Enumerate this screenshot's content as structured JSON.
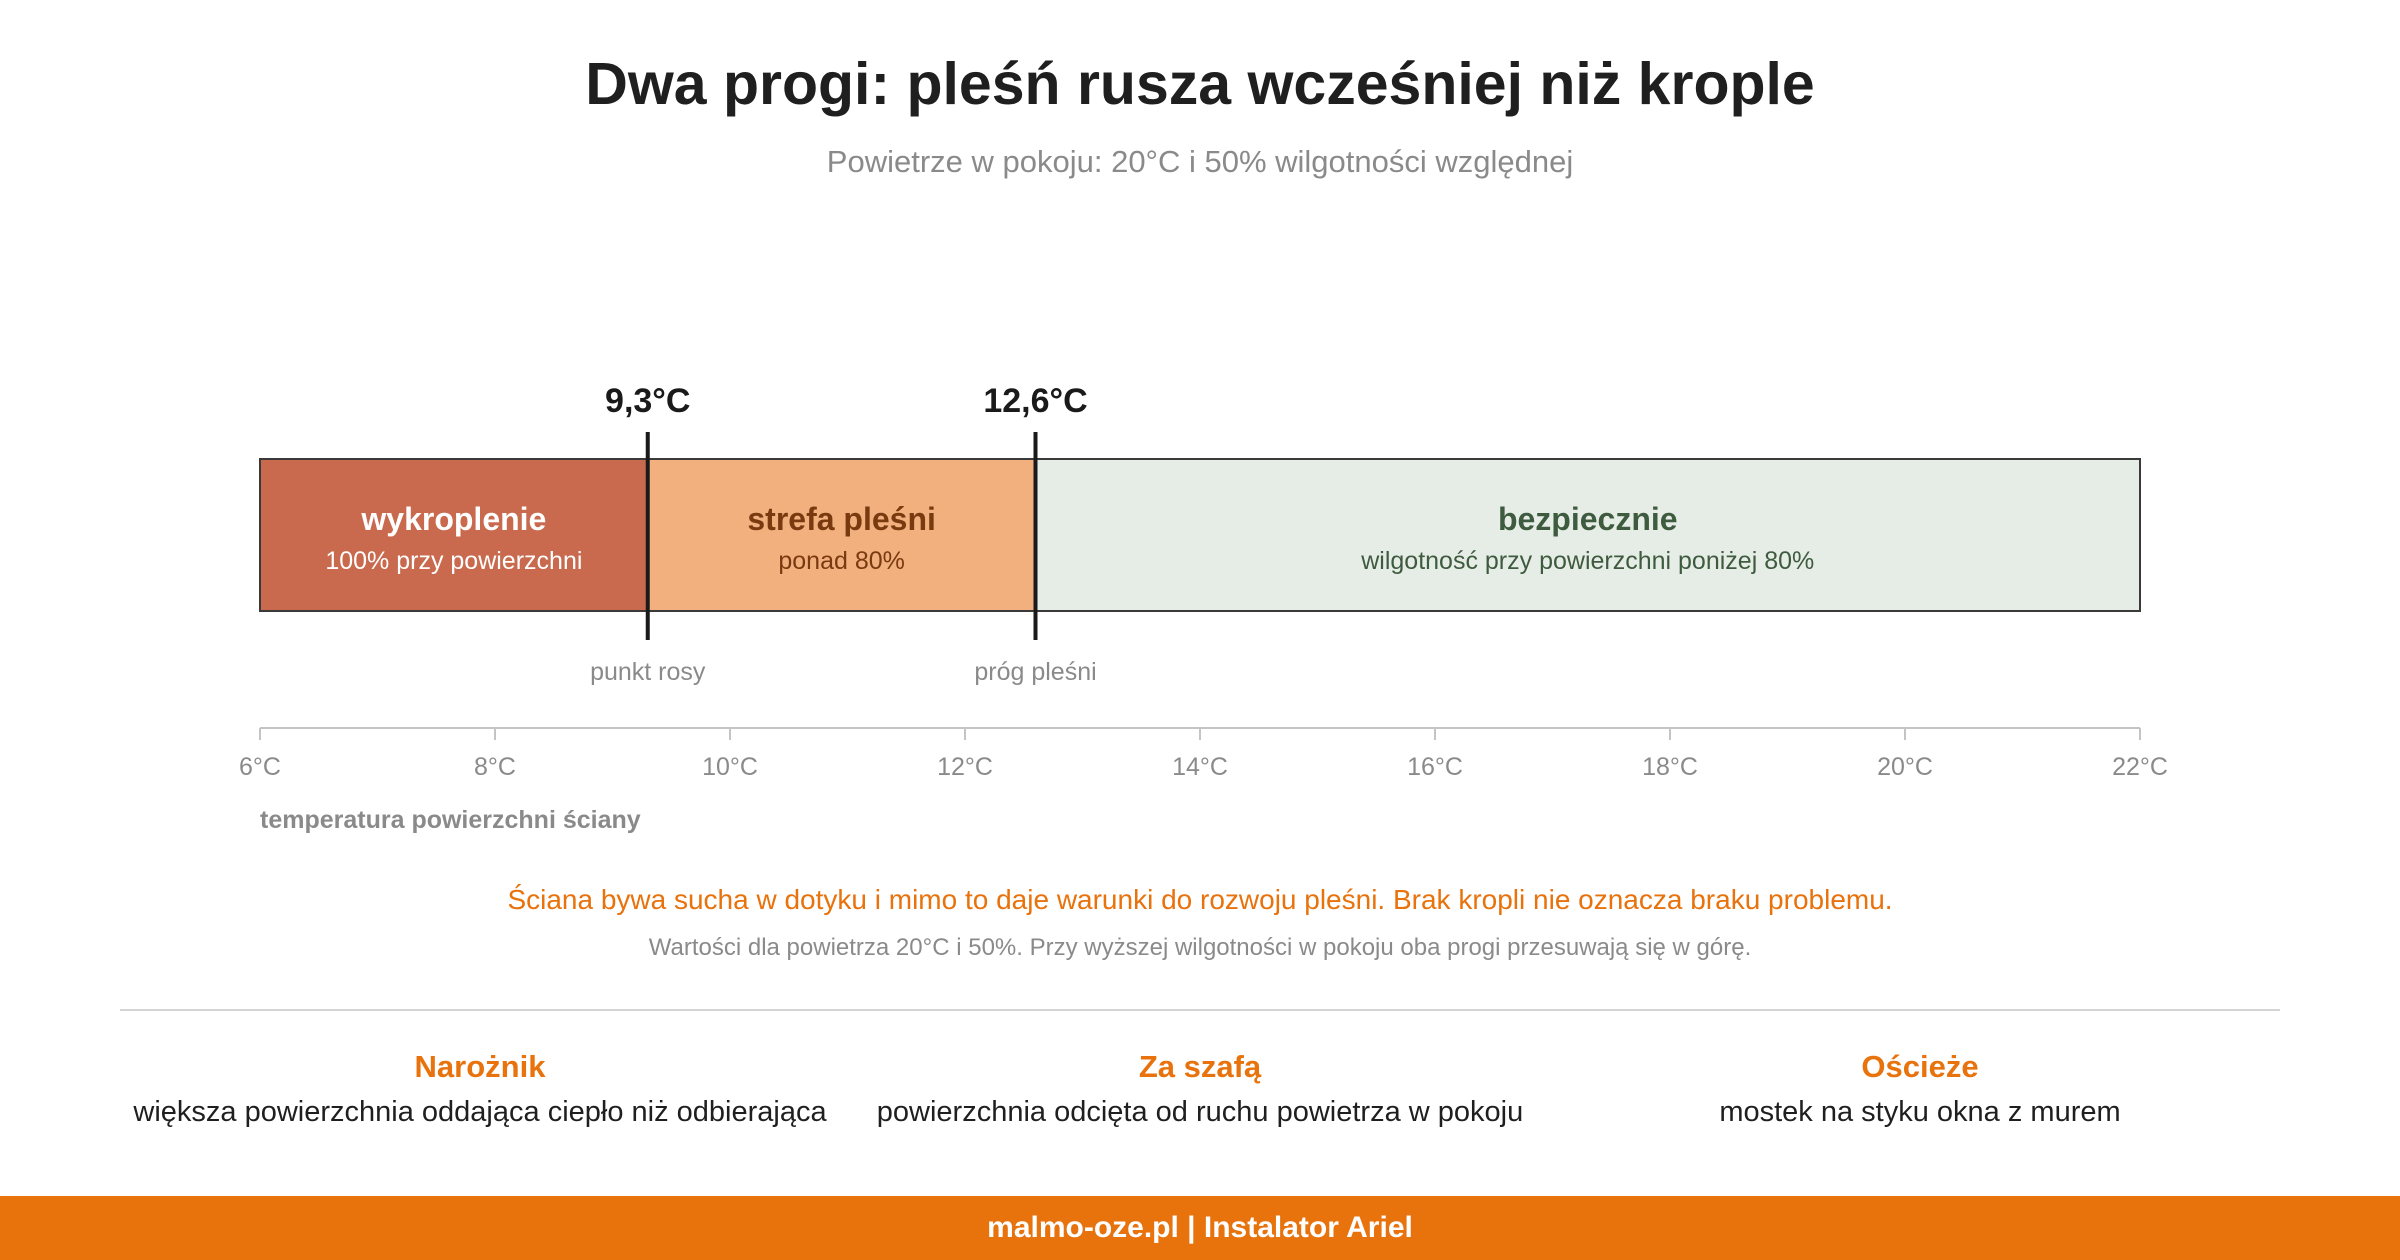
{
  "header": {
    "title": "Dwa progi: pleśń rusza wcześniej niż krople",
    "subtitle": "Powietrze w pokoju: 20°C i 50% wilgotności względnej"
  },
  "colors": {
    "accent": "#e8720c",
    "condensation_zone": "#c96a4e",
    "mold_zone": "#f2b07e",
    "safe_zone": "#e6ede6",
    "mold_text": "#7a3a10",
    "safe_text": "#3f5b3f",
    "muted_text": "#8a8a8a"
  },
  "diagram": {
    "axis": {
      "min": 6,
      "max": 22,
      "ticks": [
        6,
        8,
        10,
        12,
        14,
        16,
        18,
        20,
        22
      ],
      "tick_labels": [
        "6°C",
        "8°C",
        "10°C",
        "12°C",
        "14°C",
        "16°C",
        "18°C",
        "20°C",
        "22°C"
      ],
      "label": "temperatura powierzchni ściany"
    },
    "zones": [
      {
        "name": "wykroplenie",
        "desc": "100% przy powierzchni",
        "from": 6,
        "to": 9.3
      },
      {
        "name": "strefa pleśni",
        "desc": "ponad 80%",
        "from": 9.3,
        "to": 12.6
      },
      {
        "name": "bezpiecznie",
        "desc": "wilgotność przy powierzchni poniżej 80%",
        "from": 12.6,
        "to": 22
      }
    ],
    "thresholds": [
      {
        "value": 9.3,
        "value_label": "9,3°C",
        "label": "punkt rosy"
      },
      {
        "value": 12.6,
        "value_label": "12,6°C",
        "label": "próg pleśni"
      }
    ]
  },
  "notes": {
    "main": "Ściana bywa sucha w dotyku i mimo to daje warunki do rozwoju pleśni. Brak kropli nie oznacza braku problemu.",
    "sub": "Wartości dla powietrza 20°C i 50%. Przy wyższej wilgotności w pokoju oba progi przesuwają się w górę."
  },
  "cards": [
    {
      "title": "Narożnik",
      "desc": "większa powierzchnia oddająca ciepło niż odbierająca"
    },
    {
      "title": "Za szafą",
      "desc": "powierzchnia odcięta od ruchu powietrza w pokoju"
    },
    {
      "title": "Ościeże",
      "desc": "mostek na styku okna z murem"
    }
  ],
  "footer": {
    "text": "malmo-oze.pl | Instalator Ariel"
  }
}
